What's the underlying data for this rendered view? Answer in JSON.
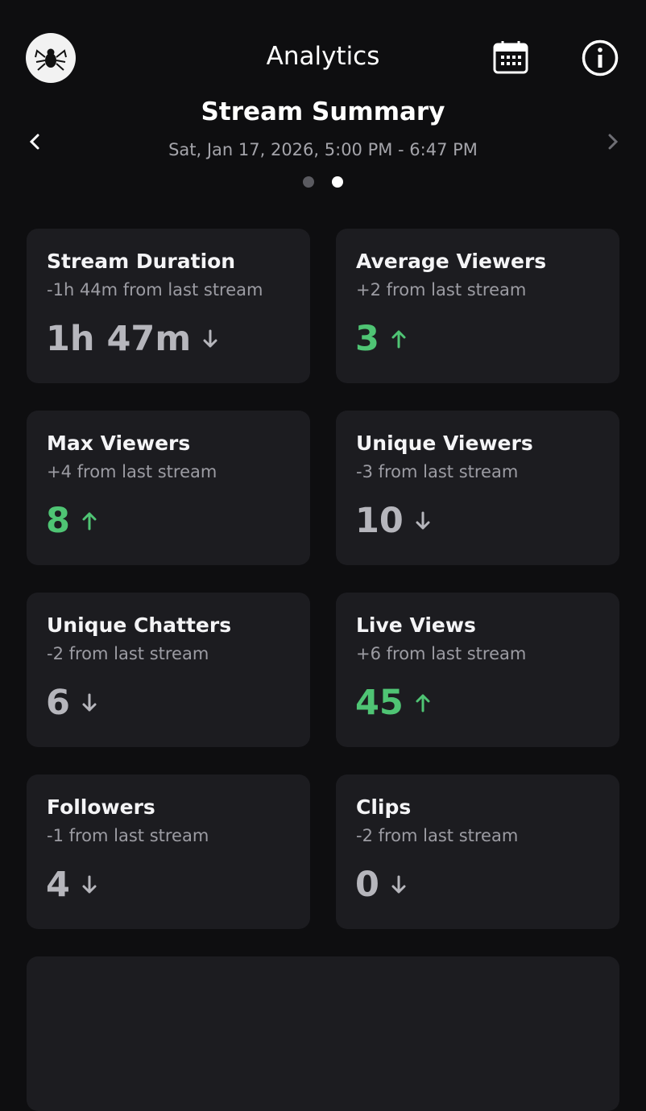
{
  "header": {
    "title": "Analytics"
  },
  "summary": {
    "title": "Stream Summary",
    "date": "Sat, Jan 17, 2026, 5:00 PM - 6:47 PM"
  },
  "cards": [
    {
      "title": "Stream Duration",
      "change": "-1h 44m from last stream",
      "value": "1h 47m",
      "trend": "down"
    },
    {
      "title": "Average Viewers",
      "change": "+2 from last stream",
      "value": "3",
      "trend": "up"
    },
    {
      "title": "Max Viewers",
      "change": "+4 from last stream",
      "value": "8",
      "trend": "up"
    },
    {
      "title": "Unique Viewers",
      "change": "-3 from last stream",
      "value": "10",
      "trend": "down"
    },
    {
      "title": "Unique Chatters",
      "change": "-2 from last stream",
      "value": "6",
      "trend": "down"
    },
    {
      "title": "Live Views",
      "change": "+6 from last stream",
      "value": "45",
      "trend": "up"
    },
    {
      "title": "Followers",
      "change": "-1 from last stream",
      "value": "4",
      "trend": "down"
    },
    {
      "title": "Clips",
      "change": "-2 from last stream",
      "value": "0",
      "trend": "down"
    }
  ]
}
